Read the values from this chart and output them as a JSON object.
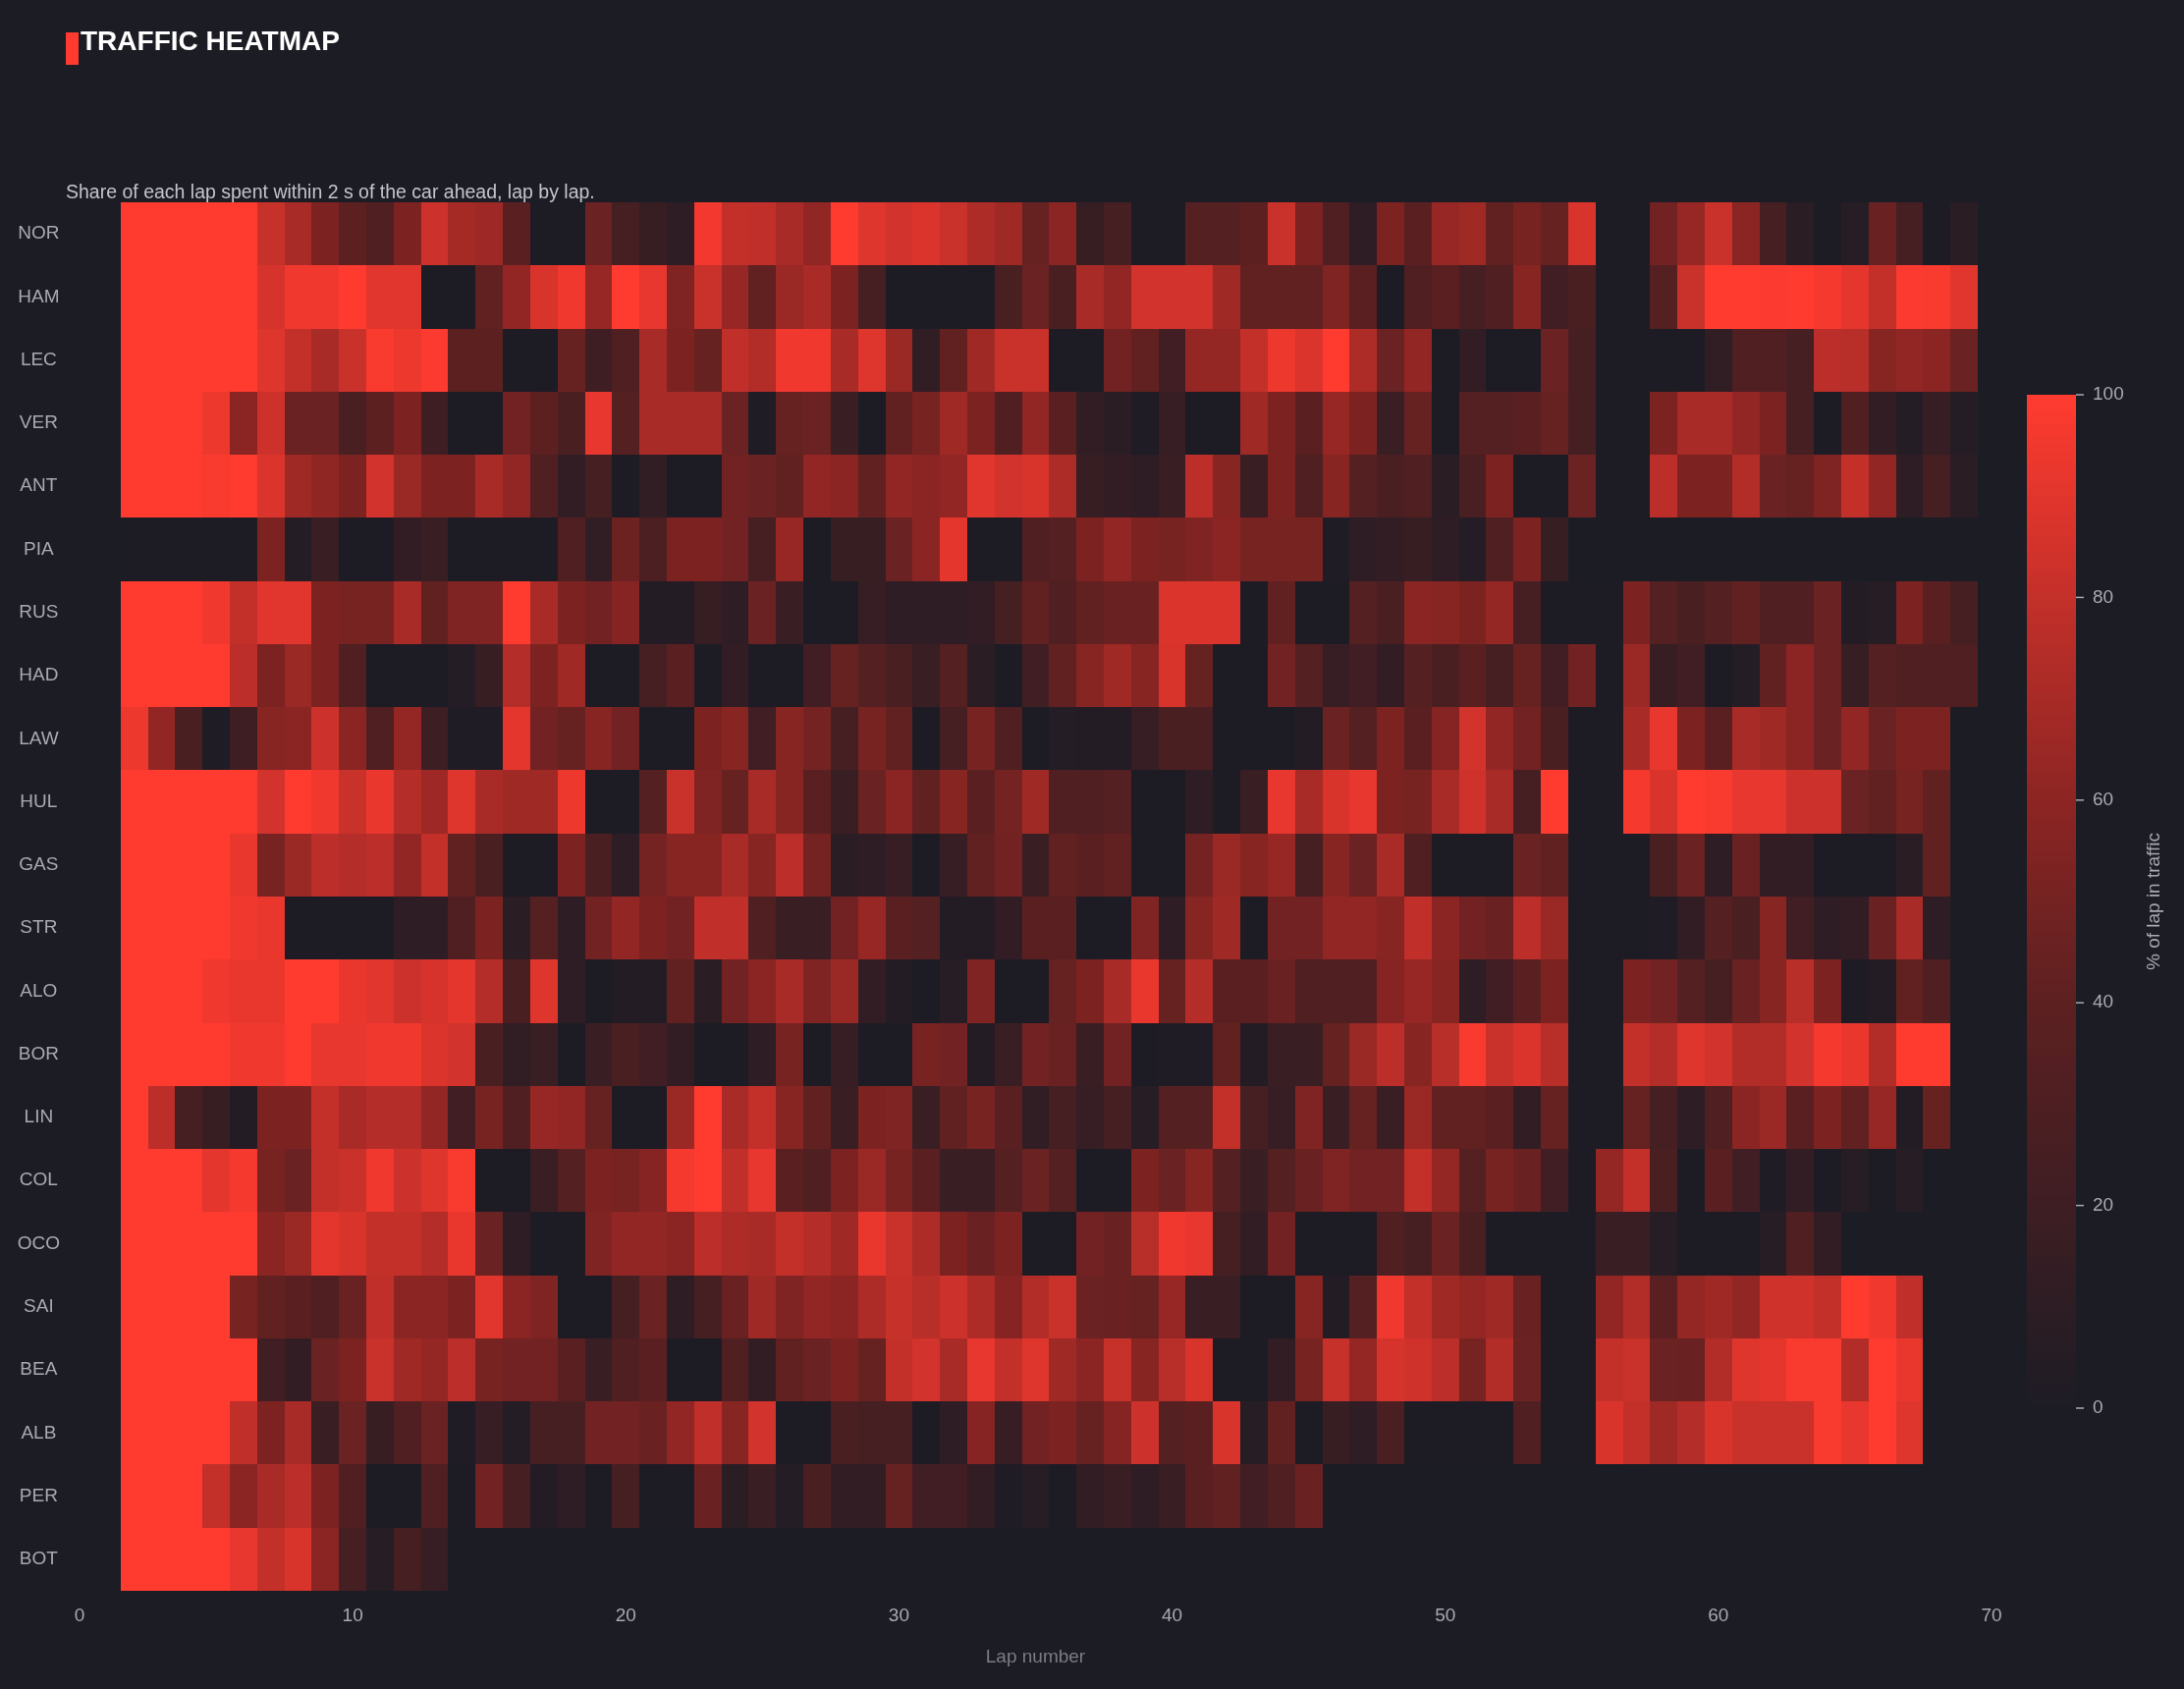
{
  "chart_data": {
    "type": "heatmap",
    "title": "TRAFFIC HEATMAP",
    "subtitle": "Share of each lap spent within 2 s of the car ahead, lap by lap.",
    "xlabel": "Lap number",
    "clabel": "% of lap in traffic",
    "x": [
      2,
      3,
      4,
      5,
      6,
      7,
      8,
      9,
      10,
      11,
      12,
      13,
      14,
      15,
      16,
      17,
      18,
      19,
      20,
      21,
      22,
      23,
      24,
      25,
      26,
      27,
      28,
      29,
      30,
      31,
      32,
      33,
      34,
      35,
      36,
      37,
      38,
      39,
      40,
      41,
      42,
      43,
      44,
      45,
      46,
      47,
      48,
      49,
      50,
      51,
      52,
      53,
      54,
      55,
      56,
      57,
      58,
      59,
      60,
      61,
      62,
      63,
      64,
      65,
      66,
      67,
      68,
      69
    ],
    "y_categories": [
      "NOR",
      "HAM",
      "LEC",
      "VER",
      "ANT",
      "PIA",
      "RUS",
      "HAD",
      "LAW",
      "HUL",
      "GAS",
      "STR",
      "ALO",
      "BOR",
      "LIN",
      "COL",
      "OCO",
      "SAI",
      "BEA",
      "ALB",
      "PER",
      "BOT"
    ],
    "cells": [
      [
        100,
        100,
        100,
        100,
        100,
        81,
        70,
        53,
        40,
        31,
        53,
        83,
        69,
        66,
        38,
        0,
        0,
        46,
        25,
        16,
        10,
        96,
        80,
        79,
        70,
        62,
        100,
        89,
        85,
        88,
        82,
        72,
        67,
        44,
        59,
        16,
        25,
        0,
        0,
        35,
        35,
        40,
        82,
        53,
        31,
        10,
        53,
        38,
        64,
        67,
        42,
        51,
        44,
        87,
        0,
        0,
        49,
        64,
        82,
        59,
        25,
        8,
        0,
        6,
        45,
        25,
        0,
        8
      ],
      [
        100,
        100,
        100,
        100,
        100,
        86,
        95,
        95,
        100,
        90,
        90,
        0,
        0,
        42,
        62,
        87,
        95,
        64,
        100,
        92,
        55,
        82,
        64,
        42,
        65,
        70,
        53,
        25,
        0,
        0,
        0,
        0,
        28,
        46,
        28,
        70,
        62,
        85,
        85,
        85,
        67,
        42,
        42,
        42,
        55,
        38,
        0,
        31,
        38,
        25,
        31,
        58,
        22,
        28,
        0,
        0,
        35,
        82,
        100,
        100,
        99,
        100,
        97,
        91,
        80,
        99,
        98,
        90
      ],
      [
        100,
        100,
        100,
        100,
        100,
        89,
        80,
        70,
        82,
        98,
        94,
        99,
        40,
        40,
        0,
        0,
        44,
        20,
        31,
        70,
        53,
        44,
        79,
        74,
        95,
        95,
        70,
        89,
        65,
        12,
        42,
        67,
        82,
        82,
        0,
        0,
        49,
        42,
        22,
        63,
        63,
        80,
        94,
        88,
        100,
        72,
        46,
        62,
        0,
        13,
        0,
        0,
        46,
        25,
        0,
        0,
        0,
        0,
        12,
        31,
        31,
        25,
        77,
        76,
        58,
        62,
        59,
        46
      ],
      [
        100,
        100,
        100,
        94,
        59,
        83,
        46,
        46,
        28,
        40,
        53,
        20,
        0,
        0,
        49,
        40,
        28,
        92,
        35,
        70,
        70,
        70,
        46,
        2,
        44,
        46,
        17,
        0,
        42,
        51,
        67,
        53,
        31,
        62,
        38,
        13,
        8,
        1,
        15,
        0,
        0,
        67,
        53,
        38,
        64,
        53,
        17,
        44,
        0,
        35,
        35,
        38,
        44,
        25,
        0,
        0,
        53,
        70,
        70,
        62,
        53,
        25,
        0,
        31,
        13,
        5,
        15,
        5
      ],
      [
        100,
        100,
        100,
        98,
        100,
        88,
        67,
        61,
        53,
        85,
        65,
        53,
        53,
        70,
        62,
        31,
        13,
        25,
        0,
        12,
        0,
        0,
        49,
        46,
        42,
        62,
        59,
        42,
        62,
        59,
        62,
        90,
        85,
        87,
        72,
        16,
        13,
        10,
        17,
        77,
        58,
        17,
        53,
        31,
        58,
        35,
        28,
        31,
        8,
        28,
        53,
        0,
        0,
        46,
        0,
        0,
        77,
        53,
        53,
        74,
        46,
        44,
        55,
        80,
        62,
        10,
        25,
        8
      ],
      [
        0,
        0,
        0,
        0,
        0,
        53,
        5,
        17,
        0,
        0,
        13,
        17,
        0,
        0,
        0,
        0,
        31,
        12,
        47,
        29,
        53,
        53,
        49,
        25,
        64,
        0,
        16,
        16,
        46,
        59,
        91,
        0,
        0,
        31,
        35,
        53,
        62,
        53,
        51,
        55,
        59,
        51,
        51,
        51,
        2,
        10,
        13,
        16,
        10,
        5,
        31,
        53,
        16,
        null,
        null,
        null,
        null,
        null,
        null,
        null,
        null,
        null,
        null,
        null,
        null,
        null,
        null,
        null
      ],
      [
        100,
        100,
        100,
        95,
        80,
        90,
        90,
        53,
        51,
        51,
        70,
        42,
        55,
        55,
        100,
        70,
        53,
        49,
        57,
        4,
        4,
        16,
        10,
        46,
        17,
        0,
        0,
        15,
        10,
        10,
        10,
        13,
        25,
        42,
        31,
        42,
        45,
        45,
        88,
        88,
        88,
        0,
        42,
        0,
        0,
        35,
        28,
        59,
        58,
        53,
        63,
        25,
        0,
        0,
        0,
        53,
        35,
        28,
        35,
        42,
        31,
        31,
        46,
        4,
        6,
        53,
        38,
        25
      ],
      [
        100,
        100,
        100,
        100,
        77,
        53,
        65,
        53,
        31,
        0,
        0,
        0,
        5,
        16,
        75,
        53,
        67,
        0,
        0,
        25,
        38,
        0,
        13,
        0,
        0,
        22,
        44,
        35,
        28,
        17,
        35,
        8,
        0,
        22,
        42,
        58,
        67,
        58,
        87,
        44,
        0,
        0,
        49,
        35,
        15,
        22,
        13,
        35,
        28,
        38,
        25,
        44,
        22,
        49,
        0,
        65,
        16,
        22,
        0,
        5,
        42,
        59,
        46,
        16,
        35,
        31,
        31,
        31
      ],
      [
        94,
        62,
        28,
        2,
        20,
        58,
        59,
        83,
        59,
        31,
        63,
        19,
        2,
        2,
        91,
        49,
        44,
        58,
        49,
        0,
        0,
        53,
        58,
        22,
        58,
        50,
        25,
        51,
        42,
        0,
        25,
        51,
        31,
        0,
        5,
        4,
        4,
        15,
        28,
        28,
        0,
        0,
        0,
        4,
        46,
        35,
        53,
        38,
        57,
        85,
        62,
        49,
        28,
        0,
        0,
        70,
        92,
        53,
        38,
        70,
        67,
        59,
        46,
        62,
        46,
        53,
        53,
        null
      ],
      [
        100,
        100,
        100,
        100,
        100,
        85,
        100,
        95,
        82,
        93,
        75,
        66,
        89,
        70,
        67,
        67,
        94,
        0,
        0,
        35,
        82,
        55,
        44,
        70,
        58,
        38,
        17,
        46,
        59,
        42,
        58,
        38,
        50,
        67,
        31,
        31,
        35,
        0,
        0,
        10,
        0,
        17,
        92,
        70,
        87,
        92,
        53,
        51,
        70,
        84,
        70,
        25,
        100,
        0,
        0,
        97,
        87,
        100,
        98,
        92,
        92,
        83,
        83,
        46,
        42,
        51,
        42,
        null
      ],
      [
        100,
        100,
        100,
        100,
        93,
        51,
        65,
        77,
        75,
        77,
        62,
        80,
        42,
        28,
        0,
        0,
        53,
        28,
        10,
        50,
        58,
        58,
        70,
        58,
        77,
        50,
        8,
        10,
        15,
        0,
        15,
        42,
        49,
        17,
        42,
        38,
        42,
        0,
        0,
        50,
        65,
        58,
        64,
        25,
        58,
        46,
        70,
        31,
        0,
        0,
        0,
        46,
        42,
        0,
        0,
        0,
        28,
        46,
        10,
        45,
        13,
        13,
        0,
        0,
        0,
        8,
        42,
        null
      ],
      [
        100,
        100,
        100,
        100,
        95,
        93,
        0,
        0,
        0,
        0,
        10,
        10,
        31,
        53,
        8,
        35,
        10,
        49,
        62,
        53,
        49,
        79,
        79,
        31,
        17,
        17,
        49,
        64,
        38,
        35,
        4,
        4,
        13,
        38,
        38,
        0,
        0,
        55,
        10,
        58,
        67,
        0,
        49,
        49,
        62,
        62,
        58,
        79,
        59,
        49,
        45,
        77,
        65,
        0,
        0,
        0,
        2,
        13,
        35,
        28,
        58,
        22,
        10,
        13,
        45,
        70,
        10,
        null
      ],
      [
        100,
        100,
        100,
        95,
        93,
        93,
        100,
        100,
        93,
        90,
        83,
        86,
        91,
        75,
        28,
        89,
        10,
        0,
        4,
        4,
        42,
        8,
        49,
        59,
        70,
        55,
        65,
        13,
        4,
        0,
        6,
        55,
        0,
        0,
        44,
        53,
        70,
        93,
        44,
        75,
        38,
        38,
        45,
        31,
        31,
        31,
        57,
        64,
        58,
        10,
        22,
        38,
        53,
        0,
        0,
        53,
        49,
        35,
        25,
        45,
        58,
        76,
        53,
        0,
        4,
        42,
        31,
        null
      ],
      [
        100,
        100,
        100,
        100,
        95,
        95,
        100,
        92,
        92,
        95,
        95,
        88,
        85,
        28,
        12,
        17,
        0,
        17,
        28,
        22,
        13,
        0,
        0,
        10,
        51,
        0,
        15,
        0,
        0,
        51,
        49,
        4,
        17,
        49,
        45,
        17,
        49,
        0,
        2,
        2,
        42,
        4,
        17,
        17,
        44,
        65,
        77,
        58,
        76,
        98,
        82,
        88,
        76,
        0,
        0,
        80,
        75,
        89,
        85,
        74,
        74,
        85,
        97,
        93,
        74,
        100,
        100,
        null
      ],
      [
        100,
        77,
        25,
        16,
        4,
        53,
        53,
        80,
        70,
        75,
        75,
        62,
        22,
        51,
        31,
        64,
        62,
        44,
        0,
        0,
        65,
        100,
        70,
        80,
        58,
        42,
        17,
        53,
        55,
        17,
        42,
        51,
        38,
        12,
        25,
        15,
        25,
        6,
        35,
        35,
        80,
        25,
        15,
        55,
        17,
        44,
        17,
        65,
        42,
        42,
        38,
        13,
        44,
        0,
        0,
        44,
        25,
        10,
        31,
        59,
        65,
        38,
        53,
        42,
        64,
        4,
        44,
        null
      ],
      [
        100,
        100,
        100,
        91,
        97,
        51,
        46,
        80,
        82,
        95,
        83,
        89,
        98,
        0,
        0,
        17,
        35,
        53,
        51,
        57,
        97,
        100,
        79,
        92,
        38,
        31,
        53,
        65,
        51,
        38,
        17,
        17,
        35,
        46,
        35,
        0,
        0,
        53,
        46,
        58,
        35,
        17,
        35,
        45,
        55,
        49,
        49,
        80,
        63,
        35,
        51,
        45,
        22,
        0,
        63,
        80,
        28,
        0,
        38,
        22,
        2,
        13,
        0,
        6,
        0,
        6,
        null,
        null
      ],
      [
        100,
        100,
        100,
        100,
        100,
        59,
        65,
        91,
        87,
        80,
        80,
        75,
        93,
        46,
        10,
        0,
        0,
        55,
        62,
        62,
        59,
        77,
        72,
        70,
        80,
        75,
        67,
        93,
        82,
        72,
        53,
        45,
        53,
        0,
        0,
        49,
        45,
        76,
        95,
        92,
        25,
        13,
        49,
        0,
        0,
        0,
        31,
        25,
        46,
        28,
        0,
        0,
        0,
        0,
        17,
        17,
        6,
        0,
        0,
        0,
        6,
        31,
        13,
        null,
        null,
        null,
        null,
        null
      ],
      [
        100,
        100,
        100,
        100,
        51,
        42,
        38,
        31,
        45,
        79,
        59,
        59,
        53,
        90,
        59,
        55,
        0,
        0,
        25,
        46,
        10,
        25,
        45,
        67,
        55,
        62,
        59,
        72,
        81,
        76,
        83,
        72,
        57,
        74,
        82,
        46,
        45,
        44,
        64,
        17,
        17,
        0,
        0,
        58,
        4,
        35,
        95,
        80,
        67,
        63,
        67,
        45,
        0,
        0,
        62,
        74,
        38,
        63,
        67,
        62,
        84,
        84,
        80,
        100,
        95,
        79,
        null,
        null
      ],
      [
        100,
        100,
        100,
        100,
        100,
        22,
        13,
        46,
        53,
        82,
        67,
        63,
        77,
        51,
        49,
        49,
        38,
        17,
        31,
        38,
        0,
        0,
        31,
        13,
        42,
        46,
        53,
        44,
        80,
        85,
        70,
        92,
        80,
        89,
        67,
        59,
        81,
        58,
        76,
        87,
        0,
        0,
        13,
        51,
        81,
        63,
        86,
        84,
        77,
        51,
        74,
        46,
        0,
        0,
        80,
        82,
        46,
        45,
        74,
        89,
        91,
        98,
        98,
        74,
        100,
        93,
        null,
        null
      ],
      [
        100,
        100,
        100,
        100,
        79,
        53,
        70,
        17,
        46,
        16,
        31,
        46,
        2,
        15,
        5,
        25,
        25,
        49,
        49,
        45,
        62,
        79,
        58,
        85,
        0,
        0,
        28,
        25,
        25,
        0,
        10,
        57,
        15,
        49,
        53,
        44,
        57,
        83,
        35,
        38,
        87,
        6,
        42,
        0,
        16,
        10,
        28,
        0,
        0,
        0,
        0,
        31,
        0,
        0,
        87,
        80,
        67,
        75,
        87,
        82,
        82,
        82,
        98,
        92,
        100,
        89,
        null,
        null
      ],
      [
        100,
        100,
        100,
        80,
        59,
        70,
        77,
        53,
        31,
        0,
        0,
        31,
        0,
        49,
        25,
        4,
        10,
        0,
        25,
        0,
        0,
        45,
        8,
        17,
        5,
        28,
        13,
        13,
        44,
        22,
        22,
        13,
        2,
        6,
        0,
        13,
        17,
        10,
        17,
        38,
        42,
        22,
        31,
        45,
        null,
        null,
        null,
        null,
        null,
        null,
        null,
        null,
        null,
        null,
        null,
        null,
        null,
        null,
        null,
        null,
        null,
        null,
        null,
        null,
        null,
        null,
        null,
        null
      ],
      [
        100,
        100,
        100,
        100,
        92,
        80,
        87,
        59,
        25,
        6,
        25,
        15,
        null,
        null,
        null,
        null,
        null,
        null,
        null,
        null,
        null,
        null,
        null,
        null,
        null,
        null,
        null,
        null,
        null,
        null,
        null,
        null,
        null,
        null,
        null,
        null,
        null,
        null,
        null,
        null,
        null,
        null,
        null,
        null,
        null,
        null,
        null,
        null,
        null,
        null,
        null,
        null,
        null,
        null,
        null,
        null,
        null,
        null,
        null,
        null,
        null,
        null,
        null,
        null,
        null,
        null,
        null,
        null
      ]
    ],
    "xlim": [
      0,
      70
    ],
    "xticks": [
      0,
      10,
      20,
      30,
      40,
      50,
      60,
      70
    ],
    "clim": [
      0,
      100
    ],
    "cticks": [
      0,
      20,
      40,
      60,
      80,
      100
    ],
    "colors": [
      "#1d1c25",
      "#3e1e23",
      "#5d2021",
      "#8c2523",
      "#c3302a",
      "#ff3b30"
    ]
  }
}
